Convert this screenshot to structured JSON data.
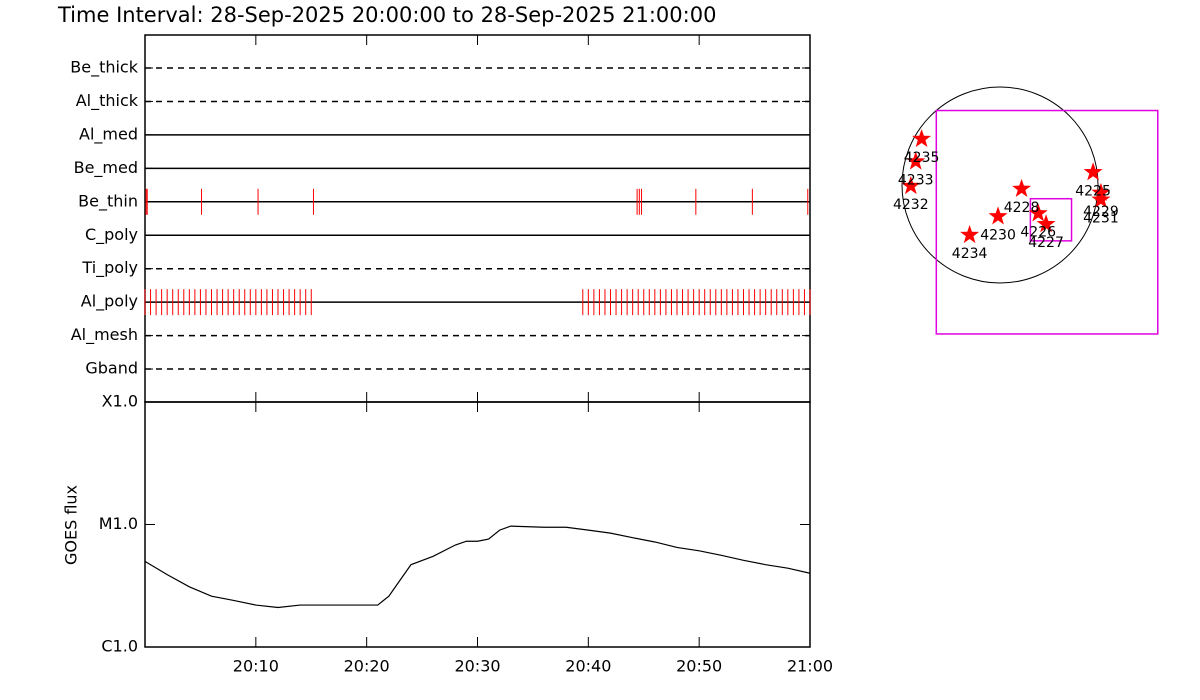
{
  "chart_data": [
    {
      "type": "timeline",
      "title": "Time Interval: 28-Sep-2025 20:00:00 to 28-Sep-2025 21:00:00",
      "categories": [
        "Be_thick",
        "Al_thick",
        "Al_med",
        "Be_med",
        "Be_thin",
        "C_poly",
        "Ti_poly",
        "Al_poly",
        "Al_mesh",
        "Gband"
      ],
      "line_styles": [
        "dashed",
        "dashed",
        "solid",
        "solid",
        "solid",
        "solid",
        "dashed",
        "solid",
        "dashed",
        "dashed"
      ],
      "observations": [
        [],
        [],
        [],
        [],
        [
          0.1,
          0.2,
          5.1,
          10.2,
          15.2,
          44.4,
          44.6,
          44.8,
          49.7,
          54.8,
          59.8
        ],
        [],
        [],
        [
          0,
          0.5,
          1,
          1.5,
          2,
          2.5,
          3,
          3.5,
          4,
          4.5,
          5,
          5.5,
          6,
          6.5,
          7,
          7.5,
          8,
          8.5,
          9,
          9.5,
          10,
          10.5,
          11,
          11.5,
          12,
          12.5,
          13,
          13.5,
          14,
          14.5,
          15,
          39.5,
          40,
          40.5,
          41,
          41.5,
          42,
          42.5,
          43,
          43.5,
          44,
          44.5,
          45,
          45.5,
          46,
          46.5,
          47,
          47.5,
          48,
          48.5,
          49,
          49.5,
          50,
          50.5,
          51,
          51.5,
          52,
          52.5,
          53,
          53.5,
          54,
          54.5,
          55,
          55.5,
          56,
          56.5,
          57,
          57.5,
          58,
          58.5,
          59,
          59.5,
          60
        ],
        [],
        []
      ],
      "color": "#ff0000"
    },
    {
      "type": "line",
      "ylabel": "GOES flux",
      "x": [
        0,
        2,
        4,
        6,
        8,
        10,
        12,
        14,
        16,
        18,
        20,
        21,
        22,
        23,
        24,
        26,
        28,
        29,
        30,
        31,
        32,
        33,
        36,
        38,
        40,
        42,
        44,
        46,
        48,
        50,
        52,
        54,
        56,
        58,
        60
      ],
      "values": [
        5e-06,
        3.9e-06,
        3.1e-06,
        2.6e-06,
        2.4e-06,
        2.2e-06,
        2.1e-06,
        2.2e-06,
        2.2e-06,
        2.2e-06,
        2.2e-06,
        2.2e-06,
        2.6e-06,
        3.5e-06,
        4.7e-06,
        5.5e-06,
        6.8e-06,
        7.3e-06,
        7.3e-06,
        7.6e-06,
        9e-06,
        9.7e-06,
        9.5e-06,
        9.5e-06,
        9e-06,
        8.5e-06,
        7.8e-06,
        7.2e-06,
        6.5e-06,
        6.1e-06,
        5.6e-06,
        5.1e-06,
        4.7e-06,
        4.4e-06,
        4e-06
      ],
      "color": "#000000",
      "ylog": true,
      "ylim": [
        1e-06,
        0.0001
      ],
      "yticks": [
        {
          "value": 1e-06,
          "label": "C1.0"
        },
        {
          "value": 1e-05,
          "label": "M1.0"
        },
        {
          "value": 0.0001,
          "label": "X1.0"
        }
      ],
      "xlim": [
        0,
        60
      ],
      "xticks": [
        {
          "value": 10,
          "label": "20:10"
        },
        {
          "value": 20,
          "label": "20:20"
        },
        {
          "value": 30,
          "label": "20:30"
        },
        {
          "value": 40,
          "label": "20:40"
        },
        {
          "value": 50,
          "label": "20:50"
        },
        {
          "value": 60,
          "label": "21:00"
        }
      ]
    },
    {
      "type": "map",
      "regions": [
        {
          "label": "4235",
          "x": -0.8,
          "y": 0.47
        },
        {
          "label": "4233",
          "x": -0.86,
          "y": 0.24
        },
        {
          "label": "4232",
          "x": -0.91,
          "y": -0.01
        },
        {
          "label": "4228",
          "x": 0.22,
          "y": -0.04
        },
        {
          "label": "4226",
          "x": 0.39,
          "y": -0.29
        },
        {
          "label": "4227",
          "x": 0.47,
          "y": -0.4
        },
        {
          "label": "4230",
          "x": -0.02,
          "y": -0.32
        },
        {
          "label": "4234",
          "x": -0.31,
          "y": -0.51
        },
        {
          "label": "4225",
          "x": 0.95,
          "y": 0.13
        },
        {
          "label": "4229",
          "x": 1.03,
          "y": -0.08
        },
        {
          "label": "4231",
          "x": 1.03,
          "y": -0.15
        }
      ],
      "boxes": [
        {
          "x": [
            -0.65,
            1.61
          ],
          "y": [
            -1.52,
            0.76
          ]
        },
        {
          "x": [
            0.31,
            0.73
          ],
          "y": [
            -0.57,
            -0.14
          ]
        }
      ],
      "star_color": "#ff0000",
      "box_color": "#e000e0"
    }
  ]
}
